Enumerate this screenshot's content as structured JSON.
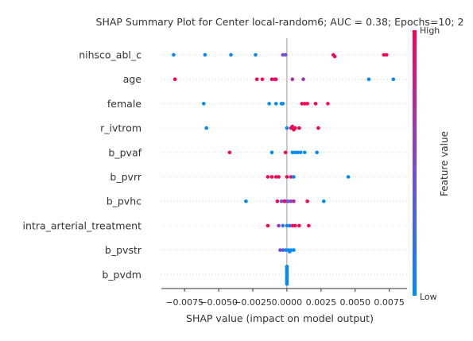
{
  "chart_data": {
    "type": "scatter",
    "title": "SHAP Summary Plot for Center local-random6; AUC = 0.38; Epochs=10; 2",
    "xlabel": "SHAP value (impact on model output)",
    "ylabel": "",
    "xlim": [
      -0.0092,
      0.0088
    ],
    "xticks": [
      -0.0075,
      -0.005,
      -0.0025,
      0.0,
      0.0025,
      0.005,
      0.0075
    ],
    "xtick_labels": [
      "−0.0075",
      "−0.0050",
      "−0.0025",
      "0.0000",
      "0.0025",
      "0.0050",
      "0.0075"
    ],
    "grid": false,
    "colorbar": {
      "label": "Feature value",
      "high_label": "High",
      "low_label": "Low",
      "low_color": "#008bfb",
      "high_color": "#ff0052"
    },
    "features": [
      {
        "name": "nihsco_abl_c",
        "points": [
          {
            "x": -0.0083,
            "v": 0.0
          },
          {
            "x": -0.006,
            "v": 0.0
          },
          {
            "x": -0.0041,
            "v": 0.05
          },
          {
            "x": -0.0023,
            "v": 0.05
          },
          {
            "x": -0.0003,
            "v": 0.5
          },
          {
            "x": -0.0001,
            "v": 0.45
          },
          {
            "x": 0.0034,
            "v": 1.0
          },
          {
            "x": 0.0035,
            "v": 1.0
          },
          {
            "x": 0.0071,
            "v": 1.0
          },
          {
            "x": 0.0073,
            "v": 1.0
          }
        ]
      },
      {
        "name": "age",
        "points": [
          {
            "x": -0.0082,
            "v": 1.0
          },
          {
            "x": -0.0022,
            "v": 1.0
          },
          {
            "x": -0.0018,
            "v": 1.0
          },
          {
            "x": -0.0011,
            "v": 1.0
          },
          {
            "x": -0.0008,
            "v": 1.0
          },
          {
            "x": -0.0009,
            "v": 0.85
          },
          {
            "x": 0.0004,
            "v": 0.7
          },
          {
            "x": 0.0012,
            "v": 0.65
          },
          {
            "x": 0.006,
            "v": 0.0
          },
          {
            "x": 0.0078,
            "v": 0.0
          }
        ]
      },
      {
        "name": "female",
        "points": [
          {
            "x": -0.0061,
            "v": 0.0
          },
          {
            "x": -0.0013,
            "v": 0.0
          },
          {
            "x": -0.0008,
            "v": 0.0
          },
          {
            "x": -0.0004,
            "v": 0.0
          },
          {
            "x": -0.0003,
            "v": 0.0
          },
          {
            "x": 0.0011,
            "v": 1.0
          },
          {
            "x": 0.0013,
            "v": 1.0
          },
          {
            "x": 0.0015,
            "v": 1.0
          },
          {
            "x": 0.0021,
            "v": 1.0
          },
          {
            "x": 0.003,
            "v": 1.0
          }
        ]
      },
      {
        "name": "r_ivtrom",
        "points": [
          {
            "x": -0.0059,
            "v": 0.0
          },
          {
            "x": 0.0,
            "v": 0.0
          },
          {
            "x": 0.0004,
            "v": 0.95
          },
          {
            "x": 0.0006,
            "v": 1.0
          },
          {
            "x": 0.0009,
            "v": 1.0
          },
          {
            "x": 0.0005,
            "v": 1.0
          },
          {
            "x": 0.0004,
            "v": 0.9
          },
          {
            "x": 0.0003,
            "v": 1.0
          },
          {
            "x": 0.0023,
            "v": 1.0
          }
        ]
      },
      {
        "name": "b_pvaf",
        "points": [
          {
            "x": -0.0042,
            "v": 1.0
          },
          {
            "x": -0.0011,
            "v": 0.0
          },
          {
            "x": -0.0001,
            "v": 1.0
          },
          {
            "x": 0.0004,
            "v": 0.0
          },
          {
            "x": 0.0006,
            "v": 0.0
          },
          {
            "x": 0.0008,
            "v": 0.0
          },
          {
            "x": 0.001,
            "v": 0.0
          },
          {
            "x": 0.0013,
            "v": 0.0
          },
          {
            "x": 0.0022,
            "v": 0.0
          }
        ]
      },
      {
        "name": "b_pvrr",
        "points": [
          {
            "x": -0.0014,
            "v": 1.0
          },
          {
            "x": -0.0011,
            "v": 1.0
          },
          {
            "x": -0.0008,
            "v": 1.0
          },
          {
            "x": -0.0006,
            "v": 1.0
          },
          {
            "x": 0.0,
            "v": 1.0
          },
          {
            "x": 0.0003,
            "v": 0.9
          },
          {
            "x": 0.0005,
            "v": 0.0
          },
          {
            "x": 0.0045,
            "v": 0.0
          }
        ]
      },
      {
        "name": "b_pvhc",
        "points": [
          {
            "x": -0.003,
            "v": 0.0
          },
          {
            "x": -0.0007,
            "v": 1.0
          },
          {
            "x": -0.0004,
            "v": 0.3
          },
          {
            "x": -0.0001,
            "v": 0.5
          },
          {
            "x": 0.0001,
            "v": 0.4
          },
          {
            "x": 0.0003,
            "v": 0.6
          },
          {
            "x": 0.0005,
            "v": 0.7
          },
          {
            "x": 0.0015,
            "v": 1.0
          },
          {
            "x": 0.0027,
            "v": 0.0
          },
          {
            "x": -0.0002,
            "v": 1.0
          }
        ]
      },
      {
        "name": "intra_arterial_treatment",
        "points": [
          {
            "x": -0.0014,
            "v": 1.0
          },
          {
            "x": -0.0006,
            "v": 0.6
          },
          {
            "x": -0.0003,
            "v": 0.2
          },
          {
            "x": 0.0,
            "v": 0.0
          },
          {
            "x": 0.0002,
            "v": 0.1
          },
          {
            "x": 0.0004,
            "v": 1.0
          },
          {
            "x": 0.0006,
            "v": 0.95
          },
          {
            "x": 0.0009,
            "v": 1.0
          },
          {
            "x": 0.0016,
            "v": 1.0
          }
        ]
      },
      {
        "name": "b_pvstr",
        "points": [
          {
            "x": -0.0005,
            "v": 0.45
          },
          {
            "x": -0.0003,
            "v": 0.5
          },
          {
            "x": -0.0001,
            "v": 0.0
          },
          {
            "x": 0.0001,
            "v": 0.0
          },
          {
            "x": 0.0003,
            "v": 0.0
          },
          {
            "x": 0.0005,
            "v": 0.0
          },
          {
            "x": 0.0002,
            "v": 0.0
          }
        ]
      },
      {
        "name": "b_pvdm",
        "points": [
          {
            "x": 0.0,
            "v": 0.0
          },
          {
            "x": 0.0,
            "v": 0.0
          },
          {
            "x": 0.0,
            "v": 0.0
          },
          {
            "x": 0.0,
            "v": 0.0
          },
          {
            "x": 0.0,
            "v": 0.0
          },
          {
            "x": 0.0,
            "v": 0.0
          },
          {
            "x": 0.0,
            "v": 0.0
          },
          {
            "x": 0.0,
            "v": 0.0
          },
          {
            "x": 0.0,
            "v": 0.0
          },
          {
            "x": 0.0,
            "v": 0.0
          },
          {
            "x": 0.0,
            "v": 0.0
          },
          {
            "x": 0.0,
            "v": 0.0
          }
        ]
      }
    ]
  }
}
